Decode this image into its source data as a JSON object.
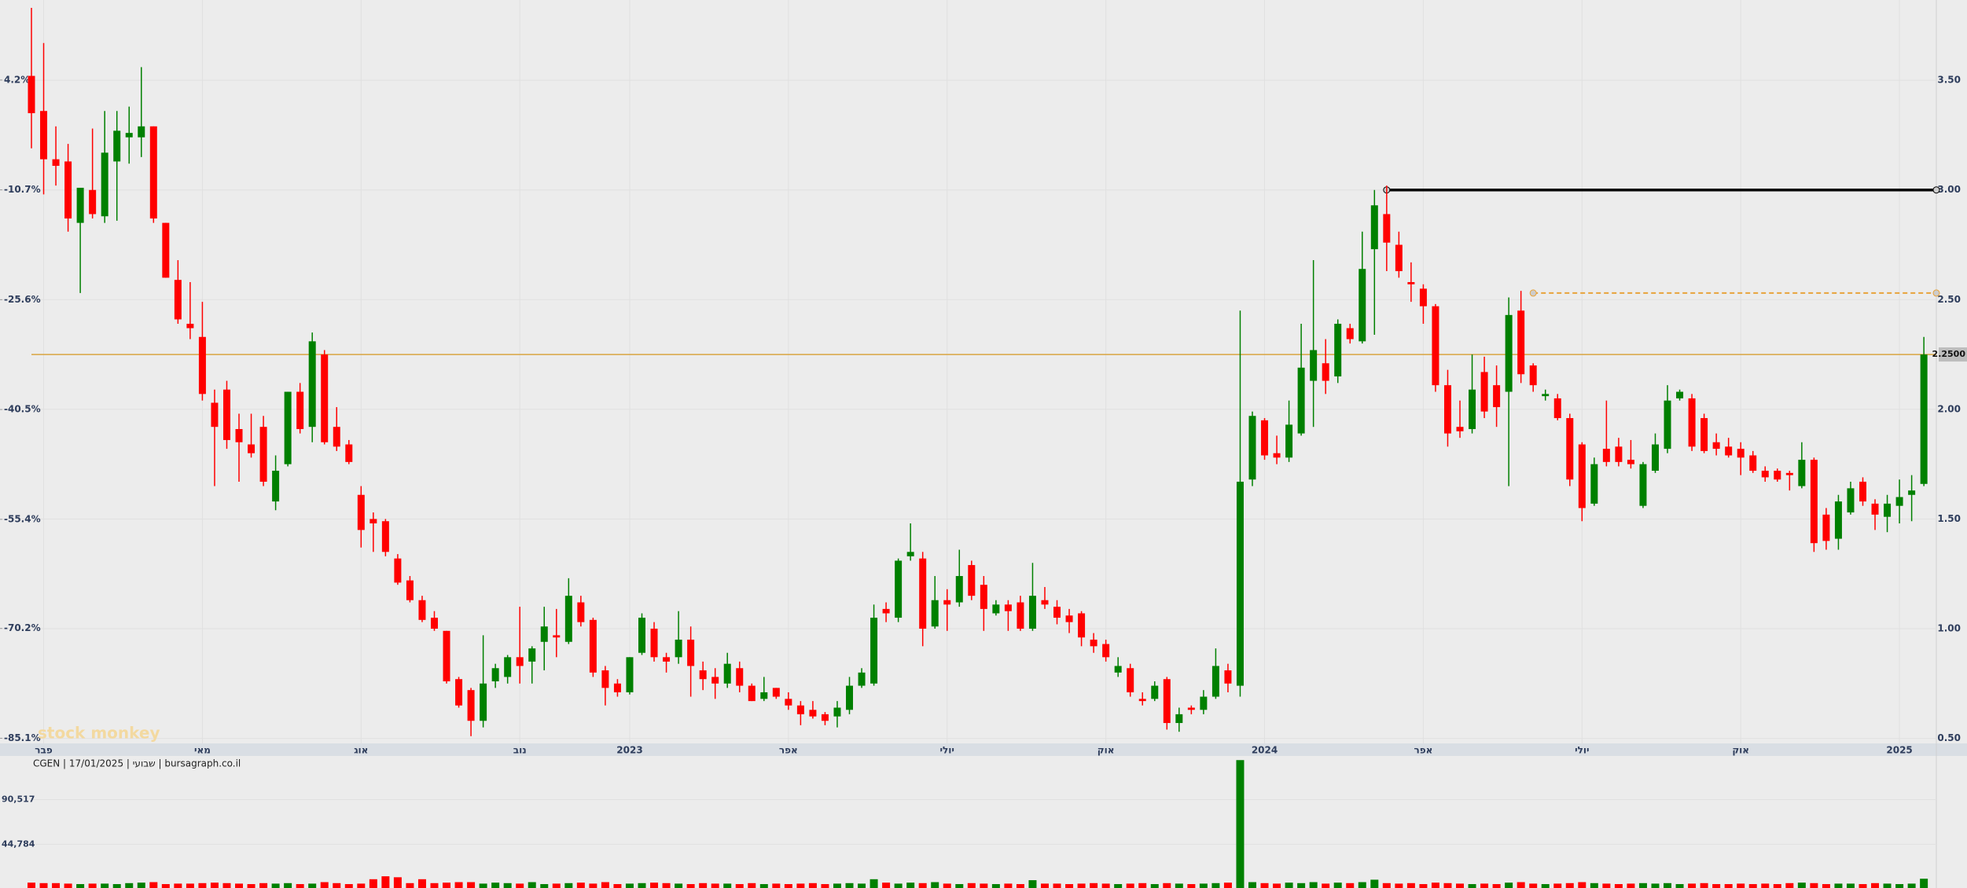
{
  "chart_data": {
    "type": "candlestick",
    "title": "CGEN | 17/01/2025 | שבועי | bursagraph.co.il",
    "watermark": "stock monkey",
    "up_color": "#008000",
    "down_color": "#ff0000",
    "grid": true,
    "open": [
      3.52,
      3.36,
      3.14,
      3.13,
      2.85,
      3.0,
      2.88,
      3.13,
      3.24,
      3.24,
      3.29,
      2.85,
      2.59,
      2.39,
      2.33,
      2.03,
      2.09,
      1.91,
      1.84,
      1.92,
      1.58,
      1.75,
      2.08,
      1.92,
      2.25,
      1.92,
      1.84,
      1.61,
      1.5,
      1.49,
      1.32,
      1.22,
      1.13,
      1.05,
      0.99,
      0.77,
      0.72,
      0.58,
      0.76,
      0.78,
      0.87,
      0.85,
      0.94,
      0.97,
      0.94,
      1.12,
      1.04,
      0.81,
      0.75,
      0.71,
      0.89,
      1.0,
      0.87,
      0.87,
      0.95,
      0.81,
      0.78,
      0.75,
      0.82,
      0.74,
      0.68,
      0.73,
      0.68,
      0.65,
      0.63,
      0.61,
      0.6,
      0.63,
      0.74,
      0.75,
      1.09,
      1.05,
      1.33,
      1.32,
      1.01,
      1.13,
      1.12,
      1.29,
      1.2,
      1.07,
      1.11,
      1.12,
      1.0,
      1.13,
      1.1,
      1.06,
      1.07,
      0.95,
      0.93,
      0.8,
      0.82,
      0.68,
      0.68,
      0.77,
      0.57,
      0.64,
      0.63,
      0.69,
      0.81,
      0.74,
      1.68,
      1.95,
      1.8,
      1.78,
      1.89,
      2.13,
      2.21,
      2.15,
      2.37,
      2.31,
      2.73,
      2.89,
      2.75,
      2.58,
      2.55,
      2.47,
      2.11,
      1.92,
      1.91,
      2.17,
      2.11,
      2.08,
      2.45,
      2.2,
      2.06,
      2.05,
      1.96,
      1.84,
      1.57,
      1.82,
      1.83,
      1.77,
      1.56,
      1.72,
      1.82,
      2.05,
      2.05,
      1.96,
      1.85,
      1.83,
      1.82,
      1.79,
      1.72,
      1.72,
      1.71,
      1.65,
      1.77,
      1.52,
      1.41,
      1.53,
      1.67,
      1.57,
      1.51,
      1.56,
      1.61,
      1.66
    ],
    "high": [
      3.83,
      3.67,
      3.29,
      3.21,
      3.01,
      3.28,
      3.36,
      3.36,
      3.38,
      3.56,
      3.29,
      2.85,
      2.68,
      2.58,
      2.49,
      2.09,
      2.13,
      1.98,
      1.98,
      1.97,
      1.79,
      2.08,
      2.12,
      2.35,
      2.27,
      2.01,
      1.86,
      1.65,
      1.53,
      1.5,
      1.34,
      1.24,
      1.15,
      1.08,
      0.99,
      0.78,
      0.73,
      0.97,
      0.84,
      0.88,
      1.1,
      0.92,
      1.1,
      1.09,
      1.23,
      1.15,
      1.05,
      0.83,
      0.77,
      0.87,
      1.07,
      1.03,
      0.89,
      1.08,
      1.01,
      0.85,
      0.82,
      0.89,
      0.85,
      0.75,
      0.78,
      0.73,
      0.71,
      0.67,
      0.67,
      0.62,
      0.67,
      0.78,
      0.82,
      1.11,
      1.12,
      1.32,
      1.48,
      1.35,
      1.24,
      1.18,
      1.36,
      1.31,
      1.24,
      1.13,
      1.13,
      1.15,
      1.3,
      1.19,
      1.13,
      1.09,
      1.08,
      0.98,
      0.95,
      0.87,
      0.84,
      0.71,
      0.76,
      0.78,
      0.64,
      0.65,
      0.72,
      0.91,
      0.84,
      2.45,
      1.99,
      1.96,
      1.88,
      2.04,
      2.39,
      2.68,
      2.32,
      2.41,
      2.39,
      2.81,
      3.0,
      3.02,
      2.81,
      2.67,
      2.57,
      2.48,
      2.18,
      2.04,
      2.25,
      2.24,
      2.2,
      2.51,
      2.54,
      2.21,
      2.09,
      2.07,
      1.98,
      1.85,
      1.78,
      2.04,
      1.87,
      1.86,
      1.76,
      1.89,
      2.11,
      2.09,
      2.07,
      1.98,
      1.89,
      1.87,
      1.85,
      1.81,
      1.74,
      1.73,
      1.72,
      1.85,
      1.78,
      1.55,
      1.61,
      1.67,
      1.69,
      1.59,
      1.61,
      1.68,
      1.7,
      2.33
    ],
    "low": [
      3.19,
      2.98,
      3.02,
      2.81,
      2.53,
      2.87,
      2.85,
      2.86,
      3.12,
      3.15,
      2.85,
      2.6,
      2.39,
      2.32,
      2.04,
      1.65,
      1.82,
      1.67,
      1.78,
      1.65,
      1.54,
      1.74,
      1.89,
      1.85,
      1.84,
      1.81,
      1.75,
      1.37,
      1.35,
      1.33,
      1.2,
      1.12,
      1.03,
      0.99,
      0.75,
      0.64,
      0.51,
      0.55,
      0.73,
      0.75,
      0.75,
      0.75,
      0.81,
      0.87,
      0.93,
      1.01,
      0.78,
      0.65,
      0.69,
      0.7,
      0.88,
      0.85,
      0.8,
      0.84,
      0.69,
      0.72,
      0.68,
      0.73,
      0.71,
      0.67,
      0.67,
      0.68,
      0.63,
      0.56,
      0.59,
      0.56,
      0.55,
      0.61,
      0.73,
      0.74,
      1.03,
      1.03,
      1.31,
      0.92,
      1.0,
      0.99,
      1.1,
      1.13,
      0.99,
      1.06,
      0.99,
      0.99,
      0.99,
      1.09,
      1.02,
      0.98,
      0.92,
      0.89,
      0.85,
      0.78,
      0.69,
      0.65,
      0.67,
      0.54,
      0.53,
      0.61,
      0.61,
      0.68,
      0.71,
      0.69,
      1.65,
      1.77,
      1.75,
      1.76,
      1.88,
      1.92,
      2.07,
      2.12,
      2.3,
      2.3,
      2.34,
      2.63,
      2.6,
      2.49,
      2.39,
      2.08,
      1.83,
      1.87,
      1.89,
      1.96,
      1.92,
      1.65,
      2.12,
      2.08,
      2.04,
      1.95,
      1.65,
      1.49,
      1.56,
      1.74,
      1.74,
      1.73,
      1.55,
      1.71,
      1.8,
      2.04,
      1.81,
      1.8,
      1.79,
      1.78,
      1.7,
      1.71,
      1.67,
      1.67,
      1.63,
      1.64,
      1.35,
      1.36,
      1.36,
      1.52,
      1.56,
      1.45,
      1.44,
      1.48,
      1.49,
      1.65
    ],
    "close": [
      3.35,
      3.14,
      3.11,
      2.87,
      3.01,
      2.89,
      3.17,
      3.27,
      3.26,
      3.29,
      2.87,
      2.6,
      2.41,
      2.37,
      2.07,
      1.92,
      1.86,
      1.85,
      1.8,
      1.67,
      1.72,
      2.08,
      1.91,
      2.31,
      1.85,
      1.83,
      1.76,
      1.45,
      1.48,
      1.35,
      1.21,
      1.13,
      1.04,
      1.0,
      0.76,
      0.65,
      0.58,
      0.75,
      0.82,
      0.87,
      0.83,
      0.91,
      1.01,
      0.96,
      1.15,
      1.03,
      0.8,
      0.73,
      0.71,
      0.87,
      1.05,
      0.87,
      0.85,
      0.95,
      0.83,
      0.77,
      0.75,
      0.84,
      0.74,
      0.67,
      0.71,
      0.69,
      0.65,
      0.61,
      0.6,
      0.58,
      0.64,
      0.74,
      0.8,
      1.05,
      1.07,
      1.31,
      1.35,
      1.0,
      1.13,
      1.11,
      1.24,
      1.15,
      1.09,
      1.11,
      1.08,
      1.0,
      1.15,
      1.11,
      1.05,
      1.03,
      0.96,
      0.92,
      0.87,
      0.83,
      0.71,
      0.67,
      0.74,
      0.57,
      0.61,
      0.63,
      0.69,
      0.83,
      0.75,
      1.67,
      1.97,
      1.79,
      1.78,
      1.93,
      2.19,
      2.27,
      2.13,
      2.39,
      2.32,
      2.64,
      2.93,
      2.76,
      2.63,
      2.57,
      2.47,
      2.11,
      1.89,
      1.9,
      2.09,
      1.99,
      2.01,
      2.43,
      2.16,
      2.11,
      2.07,
      1.96,
      1.68,
      1.55,
      1.75,
      1.76,
      1.76,
      1.75,
      1.75,
      1.84,
      2.04,
      2.08,
      1.83,
      1.81,
      1.82,
      1.79,
      1.78,
      1.72,
      1.69,
      1.68,
      1.7,
      1.77,
      1.39,
      1.4,
      1.58,
      1.64,
      1.58,
      1.52,
      1.57,
      1.6,
      1.63,
      2.25
    ],
    "volume": [
      5500,
      5000,
      5000,
      4500,
      4000,
      4500,
      4500,
      4000,
      5000,
      5500,
      6000,
      4000,
      4500,
      4500,
      5000,
      5500,
      5000,
      4500,
      4000,
      5000,
      4500,
      5000,
      4000,
      4500,
      6000,
      5000,
      4000,
      4500,
      9000,
      12000,
      11000,
      5000,
      9000,
      5000,
      5500,
      6000,
      6000,
      4500,
      5500,
      5000,
      4500,
      6000,
      4000,
      4500,
      5000,
      5500,
      4500,
      6000,
      4000,
      4500,
      5000,
      5500,
      5000,
      4500,
      4000,
      5000,
      4500,
      4500,
      4000,
      5000,
      4000,
      4500,
      4000,
      4500,
      5000,
      4000,
      4500,
      5000,
      4500,
      9000,
      5500,
      4500,
      5500,
      5000,
      6000,
      4500,
      4000,
      5000,
      4500,
      4000,
      4500,
      4000,
      8000,
      4500,
      4500,
      4000,
      4500,
      5000,
      4500,
      4000,
      4500,
      5000,
      4000,
      5000,
      4500,
      4000,
      4500,
      5000,
      5500,
      131000,
      6000,
      5000,
      4500,
      5500,
      5000,
      6000,
      4500,
      5500,
      5000,
      6000,
      8500,
      5000,
      4500,
      5000,
      4000,
      5500,
      5000,
      4500,
      4000,
      4500,
      4000,
      5500,
      6000,
      4500,
      4000,
      4500,
      5000,
      6000,
      5000,
      4500,
      4000,
      4500,
      5000,
      4500,
      5000,
      4000,
      4500,
      5000,
      4000,
      4000,
      4500,
      4000,
      4500,
      4000,
      5000,
      5500,
      5000,
      4000,
      4500,
      4500,
      4000,
      5000,
      4500,
      4000,
      4500,
      9500
    ],
    "xticks": [
      {
        "value": 1,
        "label": "פבר"
      },
      {
        "value": 14,
        "label": "מאי"
      },
      {
        "value": 27,
        "label": "אוג"
      },
      {
        "value": 40,
        "label": "נוב"
      },
      {
        "value": 49,
        "label": "2023"
      },
      {
        "value": 62,
        "label": "אפר"
      },
      {
        "value": 75,
        "label": "יולי"
      },
      {
        "value": 88,
        "label": "אוק"
      },
      {
        "value": 101,
        "label": "2024"
      },
      {
        "value": 114,
        "label": "אפר"
      },
      {
        "value": 127,
        "label": "יולי"
      },
      {
        "value": 140,
        "label": "אוק"
      },
      {
        "value": 153,
        "label": "2025"
      }
    ],
    "ylim": [
      0.477,
      3.866
    ],
    "yticks": [
      {
        "value": 0.5,
        "label": "0.50"
      },
      {
        "value": 1.0,
        "label": "1.00"
      },
      {
        "value": 1.5,
        "label": "1.50"
      },
      {
        "value": 2.0,
        "label": "2.00"
      },
      {
        "value": 2.5,
        "label": "2.50"
      },
      {
        "value": 3.0,
        "label": "3.00"
      },
      {
        "value": 3.5,
        "label": "3.50"
      }
    ],
    "y2lim": [
      -85.8,
      15.06
    ],
    "y2ticks": [
      {
        "value": -85.1,
        "label": "-85.1%"
      },
      {
        "value": -70.2,
        "label": "-70.2%"
      },
      {
        "value": -55.4,
        "label": "-55.4%"
      },
      {
        "value": -40.5,
        "label": "-40.5%"
      },
      {
        "value": -25.6,
        "label": "-25.6%"
      },
      {
        "value": -10.7,
        "label": "-10.7%"
      },
      {
        "value": 4.2,
        "label": "4.2%"
      }
    ],
    "vlim": [
      0,
      132000
    ],
    "vticks": [
      {
        "value": 44784,
        "label": "44,784"
      },
      {
        "value": 90517,
        "label": "90,517"
      }
    ],
    "current_price": {
      "value": 2.25,
      "label": "2.2500",
      "color": "#d9a441"
    },
    "levels": [
      {
        "value": 3.0,
        "color": "#000000",
        "from": 111,
        "style": "solid"
      },
      {
        "value": 2.53,
        "color": "#e8a33a",
        "from": 123,
        "style": "dashed"
      }
    ]
  }
}
